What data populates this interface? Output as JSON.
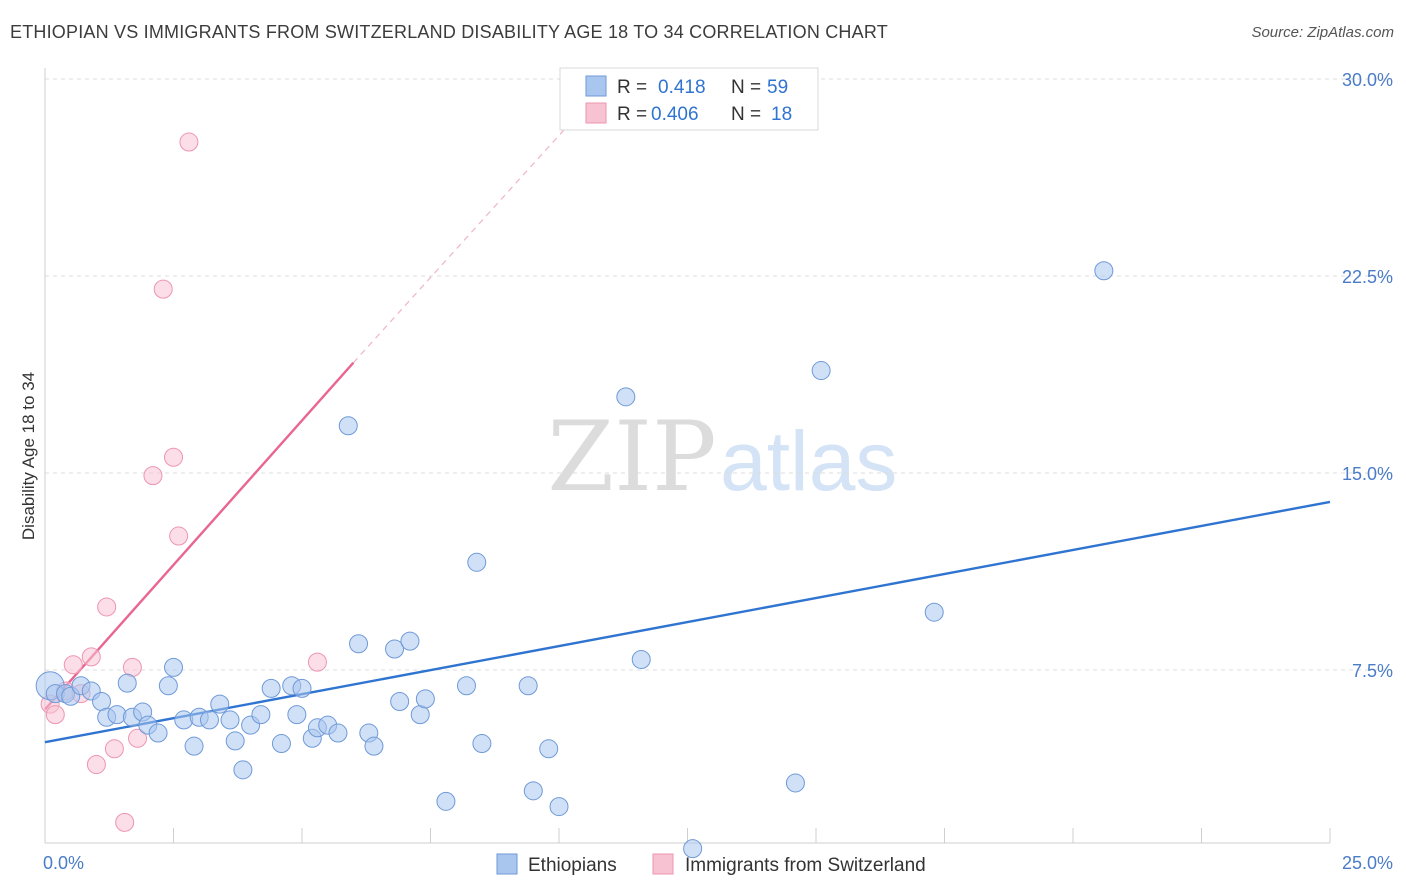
{
  "title": "ETHIOPIAN VS IMMIGRANTS FROM SWITZERLAND DISABILITY AGE 18 TO 34 CORRELATION CHART",
  "source": "Source: ZipAtlas.com",
  "watermark": {
    "zip": "ZIP",
    "atlas": "atlas"
  },
  "colors": {
    "blue_fill": "#a9c6ef",
    "blue_stroke": "#6f9ad8",
    "blue_line": "#2f74d0",
    "pink_fill": "#f7c3d3",
    "pink_stroke": "#ee95b2",
    "pink_line": "#e8668f",
    "grid": "#dddddd",
    "tick_text": "#4a7cc7"
  },
  "legend_top": {
    "rows": [
      {
        "r_label": "R =",
        "r_value": "0.418",
        "n_label": "N =",
        "n_value": "59",
        "series": "blue"
      },
      {
        "r_label": "R =",
        "r_value": "0.406",
        "n_label": "N =",
        "n_value": "18",
        "series": "pink"
      }
    ]
  },
  "legend_bottom": [
    {
      "label": "Ethiopians",
      "series": "blue"
    },
    {
      "label": "Immigrants from Switzerland",
      "series": "pink"
    }
  ],
  "chart_data": {
    "type": "scatter",
    "title": "ETHIOPIAN VS IMMIGRANTS FROM SWITZERLAND DISABILITY AGE 18 TO 34 CORRELATION CHART",
    "xlabel": "",
    "ylabel": "Disability Age 18 to 34",
    "xlim": [
      0,
      25
    ],
    "ylim": [
      0,
      31
    ],
    "x_tick_labels": [
      {
        "value": 0,
        "label": "0.0%"
      },
      {
        "value": 25,
        "label": "25.0%"
      }
    ],
    "y_tick_labels": [
      {
        "value": 7.5,
        "label": "7.5%"
      },
      {
        "value": 15,
        "label": "15.0%"
      },
      {
        "value": 22.5,
        "label": "22.5%"
      },
      {
        "value": 30,
        "label": "30.0%"
      }
    ],
    "x_minor_ticks": [
      2.5,
      5,
      7.5,
      10,
      12.5,
      15,
      17.5,
      20,
      22.5,
      25
    ],
    "grid": true,
    "legend_position": "top-center",
    "series": [
      {
        "name": "Ethiopians",
        "color": "#a9c6ef",
        "r": 0.418,
        "n": 59,
        "trend": {
          "x": [
            0,
            25
          ],
          "y": [
            4.75,
            13.9
          ],
          "dashed_extension": false
        },
        "points": [
          [
            0.1,
            6.9
          ],
          [
            0.2,
            6.6
          ],
          [
            0.4,
            6.6
          ],
          [
            0.5,
            6.5
          ],
          [
            0.7,
            6.9
          ],
          [
            0.9,
            6.7
          ],
          [
            1.1,
            6.3
          ],
          [
            1.2,
            5.7
          ],
          [
            1.4,
            5.8
          ],
          [
            1.6,
            7.0
          ],
          [
            1.7,
            5.7
          ],
          [
            1.9,
            5.9
          ],
          [
            2.0,
            5.4
          ],
          [
            2.2,
            5.1
          ],
          [
            2.4,
            6.9
          ],
          [
            2.5,
            7.6
          ],
          [
            2.7,
            5.6
          ],
          [
            2.9,
            4.6
          ],
          [
            3.0,
            5.7
          ],
          [
            3.2,
            5.6
          ],
          [
            3.4,
            6.2
          ],
          [
            3.6,
            5.6
          ],
          [
            3.7,
            4.8
          ],
          [
            3.85,
            3.7
          ],
          [
            4.0,
            5.4
          ],
          [
            4.2,
            5.8
          ],
          [
            4.4,
            6.8
          ],
          [
            4.6,
            4.7
          ],
          [
            4.8,
            6.9
          ],
          [
            4.9,
            5.8
          ],
          [
            5.0,
            6.8
          ],
          [
            5.2,
            4.9
          ],
          [
            5.3,
            5.3
          ],
          [
            5.5,
            5.4
          ],
          [
            5.7,
            5.1
          ],
          [
            5.9,
            16.8
          ],
          [
            6.1,
            8.5
          ],
          [
            6.3,
            5.1
          ],
          [
            6.4,
            4.6
          ],
          [
            6.8,
            8.3
          ],
          [
            6.9,
            6.3
          ],
          [
            7.1,
            8.6
          ],
          [
            7.3,
            5.8
          ],
          [
            7.4,
            6.4
          ],
          [
            7.8,
            2.5
          ],
          [
            8.2,
            6.9
          ],
          [
            8.4,
            11.6
          ],
          [
            8.5,
            4.7
          ],
          [
            9.4,
            6.9
          ],
          [
            9.5,
            2.9
          ],
          [
            9.8,
            4.5
          ],
          [
            10.0,
            2.3
          ],
          [
            11.3,
            17.9
          ],
          [
            11.6,
            7.9
          ],
          [
            12.6,
            0.7
          ],
          [
            14.6,
            3.2
          ],
          [
            15.1,
            18.9
          ],
          [
            17.3,
            9.7
          ],
          [
            20.6,
            22.7
          ]
        ]
      },
      {
        "name": "Immigrants from Switzerland",
        "color": "#f7c3d3",
        "r": 0.406,
        "n": 18,
        "trend": {
          "x": [
            0,
            6.0
          ],
          "y": [
            6.0,
            19.2
          ],
          "dashed_extension_to": [
            10.3,
            28.5
          ]
        },
        "points": [
          [
            0.1,
            6.2
          ],
          [
            0.2,
            5.8
          ],
          [
            0.4,
            6.7
          ],
          [
            0.55,
            7.7
          ],
          [
            0.7,
            6.6
          ],
          [
            0.9,
            8.0
          ],
          [
            1.0,
            3.9
          ],
          [
            1.2,
            9.9
          ],
          [
            1.35,
            4.5
          ],
          [
            1.55,
            1.7
          ],
          [
            1.7,
            7.6
          ],
          [
            1.8,
            4.9
          ],
          [
            2.1,
            14.9
          ],
          [
            2.3,
            22.0
          ],
          [
            2.5,
            15.6
          ],
          [
            2.6,
            12.6
          ],
          [
            2.8,
            27.6
          ],
          [
            5.3,
            7.8
          ]
        ]
      }
    ]
  }
}
